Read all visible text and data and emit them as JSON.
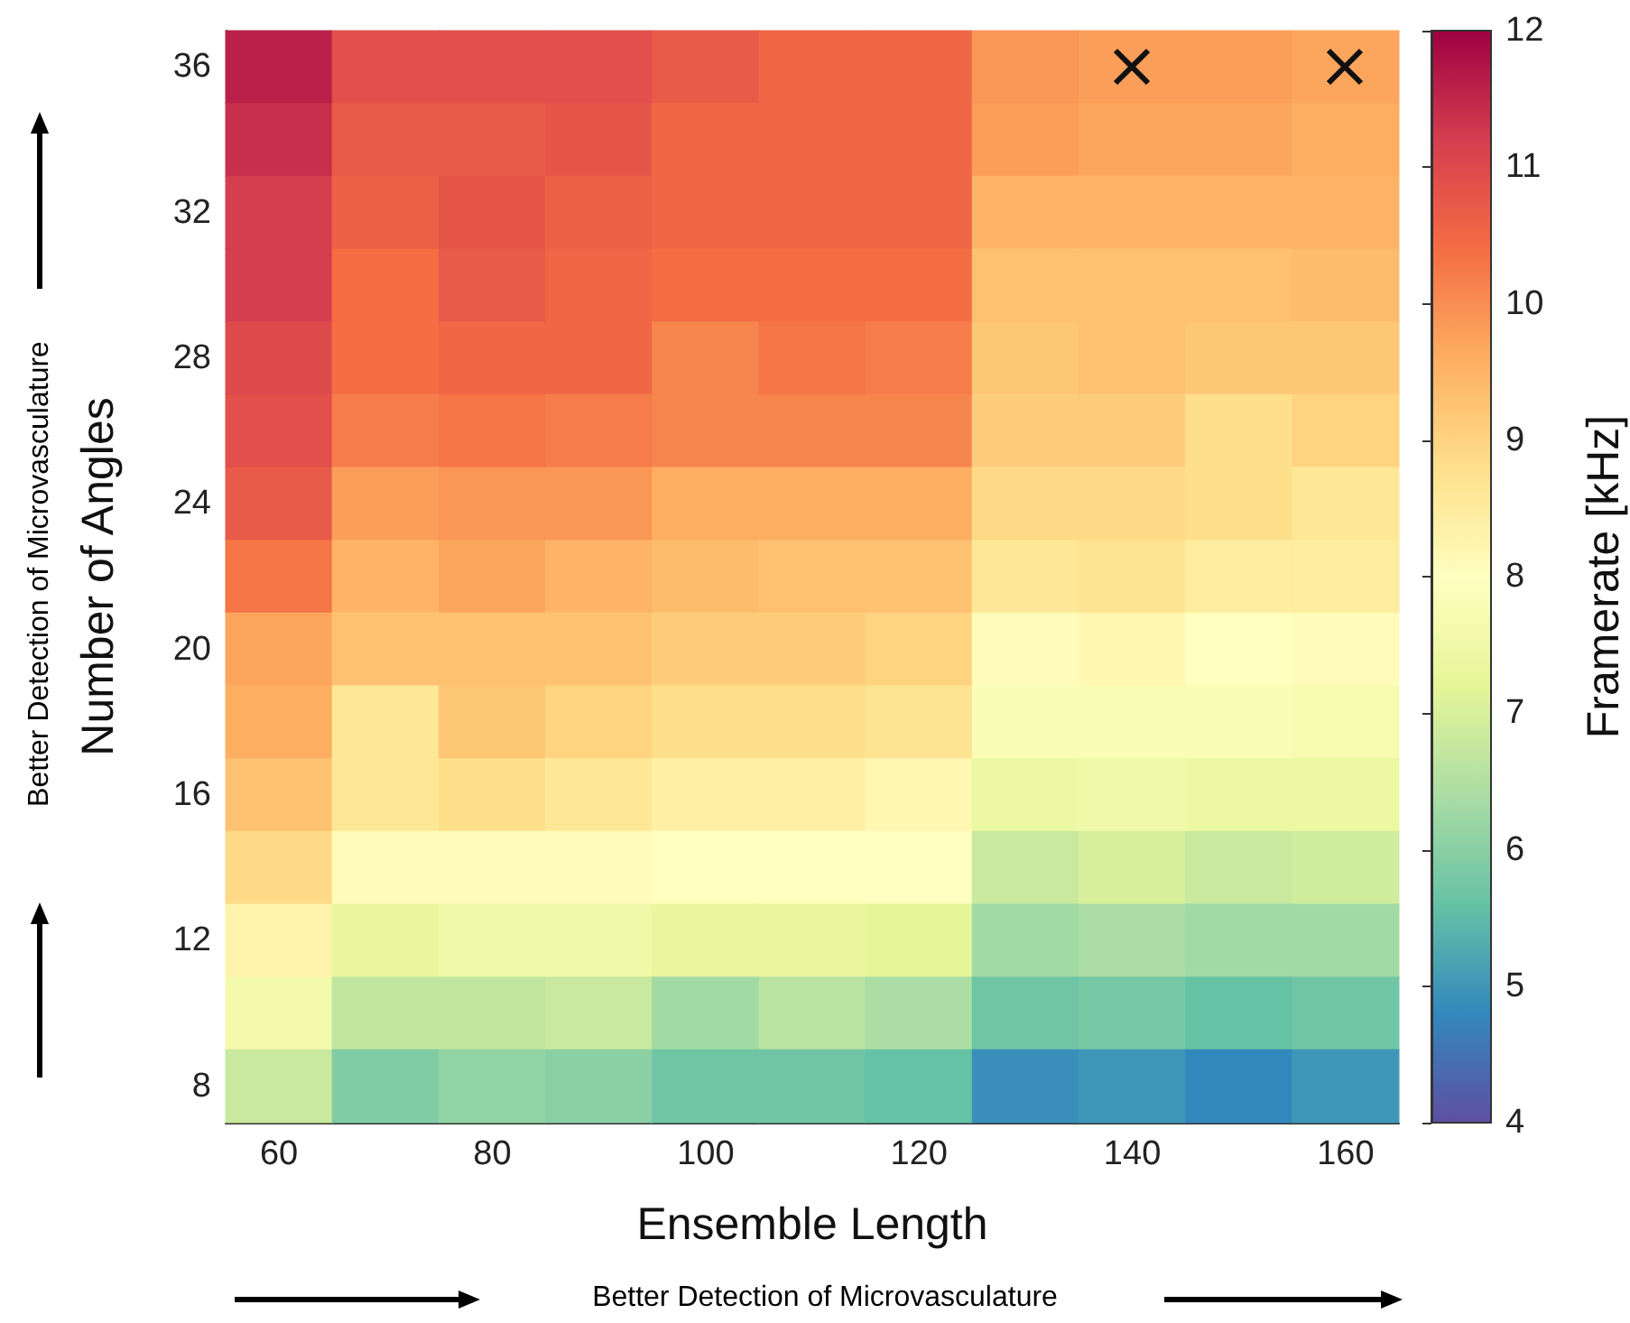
{
  "chart_data": {
    "type": "heatmap",
    "xlabel": "Ensemble Length",
    "ylabel": "Number of Angles",
    "clabel": "Framerate [kHz]",
    "categories": [
      "60",
      null,
      "80",
      null,
      "100",
      null,
      "120",
      null,
      "140",
      null,
      "160"
    ],
    "y_categories": [
      "36",
      null,
      "32",
      null,
      "28",
      null,
      "24",
      null,
      "20",
      null,
      "16",
      null,
      "12",
      null,
      "8"
    ],
    "cells": [
      [
        11.6,
        10.9,
        10.9,
        10.9,
        10.7,
        10.5,
        10.5,
        9.9,
        9.8,
        9.8,
        9.7
      ],
      [
        11.4,
        10.7,
        10.7,
        10.8,
        10.5,
        10.5,
        10.5,
        9.8,
        9.7,
        9.7,
        9.6
      ],
      [
        11.2,
        10.6,
        10.8,
        10.6,
        10.5,
        10.5,
        10.5,
        9.5,
        9.5,
        9.5,
        9.5
      ],
      [
        11.2,
        10.4,
        10.7,
        10.5,
        10.4,
        10.4,
        10.4,
        9.3,
        9.3,
        9.3,
        9.4
      ],
      [
        11.0,
        10.4,
        10.5,
        10.5,
        10.1,
        10.3,
        10.2,
        9.2,
        9.3,
        9.2,
        9.2
      ],
      [
        10.9,
        10.2,
        10.3,
        10.2,
        10.1,
        10.1,
        10.1,
        9.1,
        9.1,
        8.8,
        9.0
      ],
      [
        10.7,
        9.8,
        9.9,
        9.9,
        9.6,
        9.6,
        9.6,
        8.9,
        8.9,
        8.8,
        8.6
      ],
      [
        10.3,
        9.5,
        9.7,
        9.5,
        9.4,
        9.3,
        9.3,
        8.6,
        8.7,
        8.5,
        8.5
      ],
      [
        9.7,
        9.3,
        9.3,
        9.3,
        9.1,
        9.1,
        9.0,
        8.1,
        8.2,
        8.0,
        8.1
      ],
      [
        9.6,
        8.6,
        9.2,
        9.0,
        8.8,
        8.8,
        8.7,
        7.8,
        7.8,
        7.8,
        7.7
      ],
      [
        9.3,
        8.6,
        8.8,
        8.6,
        8.4,
        8.4,
        8.2,
        7.4,
        7.5,
        7.4,
        7.4
      ],
      [
        8.9,
        8.1,
        8.1,
        8.1,
        8.0,
        8.0,
        8.0,
        6.8,
        7.0,
        6.8,
        6.9
      ],
      [
        8.3,
        7.3,
        7.5,
        7.5,
        7.3,
        7.3,
        7.2,
        6.3,
        6.4,
        6.3,
        6.3
      ],
      [
        7.6,
        6.7,
        6.7,
        6.8,
        6.3,
        6.6,
        6.4,
        5.7,
        5.8,
        5.6,
        5.7
      ],
      [
        6.8,
        5.9,
        6.1,
        6.0,
        5.7,
        5.7,
        5.6,
        4.9,
        5.0,
        4.8,
        5.0
      ]
    ],
    "clim": [
      4,
      12
    ],
    "cticks": [
      4,
      5,
      6,
      7,
      8,
      9,
      10,
      11,
      12
    ],
    "annotations": [
      "Better Detection of Microvasculature",
      "Better Detection of Microvasculature"
    ]
  }
}
